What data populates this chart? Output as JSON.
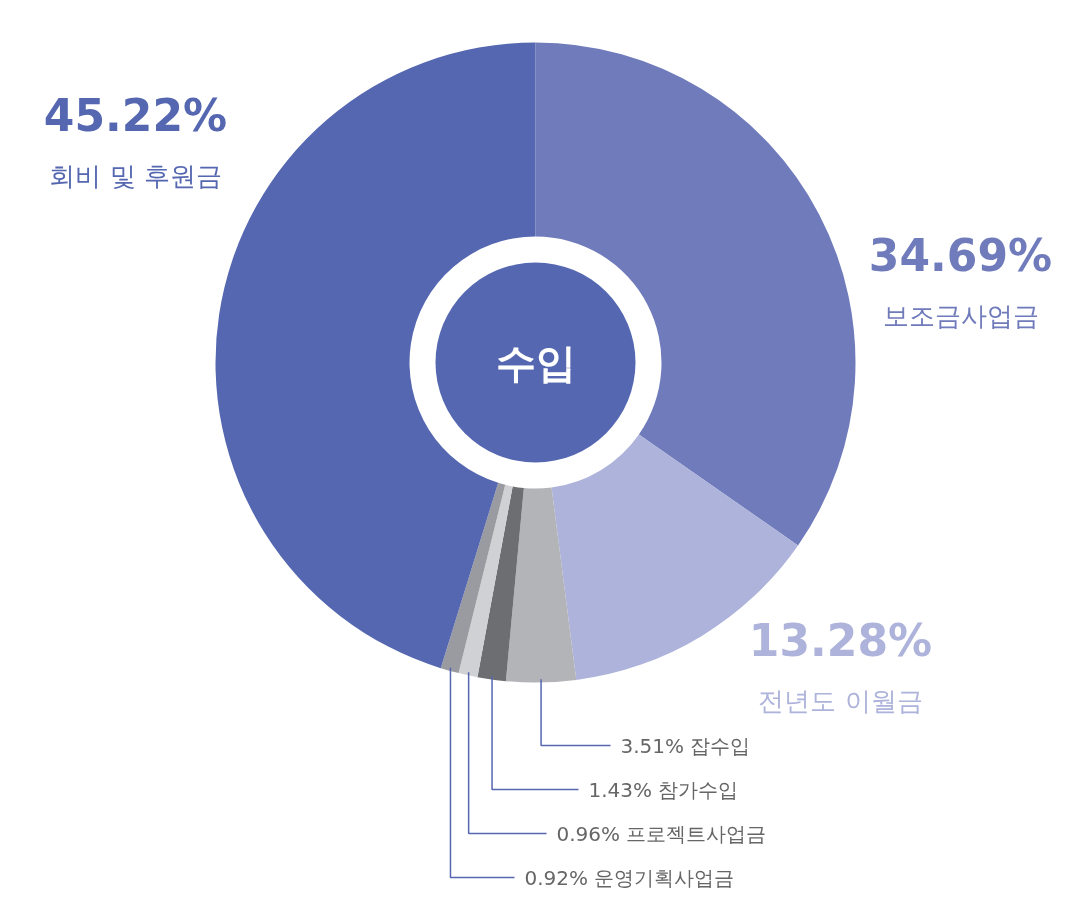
{
  "chart_data": {
    "type": "donut",
    "title": "수입",
    "categories": [
      "보조금사업금",
      "전년도 이월금",
      "잡수입",
      "참가수입",
      "프로젝트사업금",
      "운영기획사업금",
      "회비 및 후원금"
    ],
    "values": [
      34.69,
      13.28,
      3.51,
      1.43,
      0.96,
      0.92,
      45.22
    ],
    "colors": [
      "#6f7bbb",
      "#adb3da",
      "#b3b4b8",
      "#6d6e72",
      "#d0d1d4",
      "#9a9ba0",
      "#5467b0"
    ],
    "value_labels": [
      "34.69%",
      "13.28%",
      "3.51%",
      "1.43%",
      "0.96%",
      "0.92%",
      "45.22%"
    ]
  }
}
